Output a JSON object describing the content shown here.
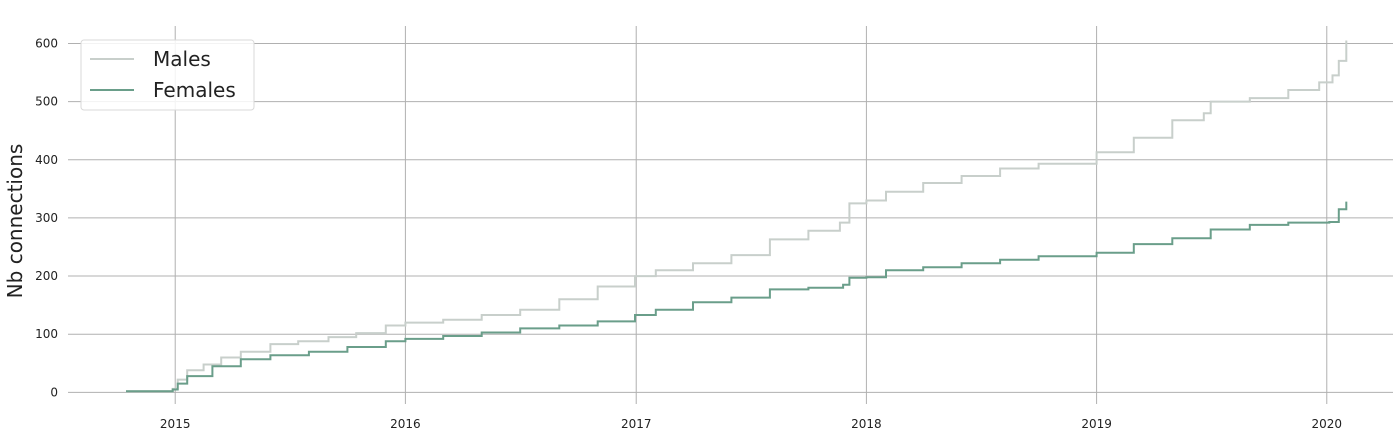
{
  "chart_data": {
    "type": "line",
    "title": "",
    "xlabel": "",
    "ylabel": "Nb connections",
    "xlim": [
      "2014-07-15",
      "2020-04-15"
    ],
    "ylim": [
      -20,
      630
    ],
    "x_ticks": [
      "2015",
      "2016",
      "2017",
      "2018",
      "2019",
      "2020"
    ],
    "y_ticks": [
      0,
      100,
      200,
      300,
      400,
      500,
      600
    ],
    "grid": true,
    "legend_position": "top-left",
    "series": [
      {
        "name": "Males",
        "color": "#c8cfcb",
        "x": [
          "2014-10-15",
          "2014-12-28",
          "2015-01-05",
          "2015-01-20",
          "2015-02-15",
          "2015-03-15",
          "2015-04-15",
          "2015-06-01",
          "2015-07-15",
          "2015-09-01",
          "2015-10-15",
          "2015-12-01",
          "2016-01-01",
          "2016-03-01",
          "2016-05-01",
          "2016-07-01",
          "2016-09-01",
          "2016-11-01",
          "2016-12-30",
          "2017-02-01",
          "2017-04-01",
          "2017-06-01",
          "2017-08-01",
          "2017-10-01",
          "2017-11-20",
          "2017-12-05",
          "2018-01-01",
          "2018-02-01",
          "2018-04-01",
          "2018-06-01",
          "2018-08-01",
          "2018-10-01",
          "2019-01-01",
          "2019-03-01",
          "2019-05-01",
          "2019-06-20",
          "2019-07-01",
          "2019-09-01",
          "2019-11-01",
          "2019-12-20",
          "2020-01-10",
          "2020-01-20",
          "2020-02-01"
        ],
        "values": [
          2,
          6,
          22,
          38,
          48,
          60,
          70,
          83,
          88,
          95,
          102,
          115,
          120,
          125,
          133,
          142,
          160,
          182,
          200,
          210,
          222,
          236,
          263,
          278,
          292,
          325,
          330,
          345,
          360,
          372,
          385,
          393,
          413,
          438,
          468,
          480,
          500,
          506,
          520,
          533,
          545,
          570,
          605
        ]
      },
      {
        "name": "Females",
        "color": "#6a9e8a",
        "x": [
          "2014-10-15",
          "2014-12-28",
          "2015-01-05",
          "2015-01-20",
          "2015-03-01",
          "2015-04-15",
          "2015-06-01",
          "2015-08-01",
          "2015-10-01",
          "2015-12-01",
          "2016-01-01",
          "2016-03-01",
          "2016-05-01",
          "2016-07-01",
          "2016-09-01",
          "2016-11-01",
          "2016-12-30",
          "2017-02-01",
          "2017-04-01",
          "2017-06-01",
          "2017-08-01",
          "2017-10-01",
          "2017-11-25",
          "2017-12-05",
          "2018-01-01",
          "2018-02-01",
          "2018-04-01",
          "2018-06-01",
          "2018-08-01",
          "2018-10-01",
          "2019-01-01",
          "2019-03-01",
          "2019-05-01",
          "2019-07-01",
          "2019-09-01",
          "2019-11-01",
          "2020-01-05",
          "2020-01-20",
          "2020-02-01"
        ],
        "values": [
          2,
          5,
          15,
          28,
          45,
          57,
          64,
          70,
          78,
          88,
          92,
          97,
          103,
          110,
          115,
          122,
          133,
          142,
          155,
          163,
          177,
          180,
          185,
          197,
          198,
          210,
          215,
          222,
          228,
          234,
          240,
          255,
          265,
          280,
          288,
          292,
          293,
          315,
          328
        ]
      }
    ]
  }
}
